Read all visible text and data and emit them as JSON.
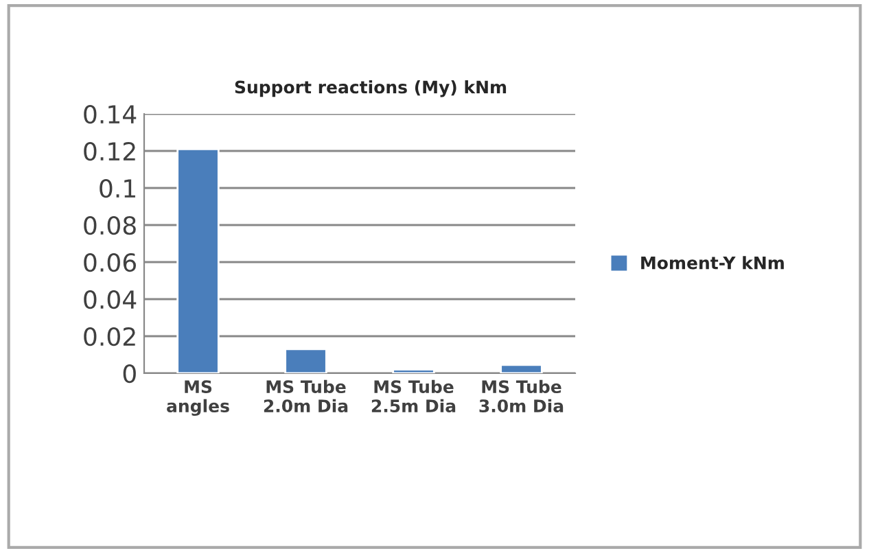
{
  "chart_data": {
    "type": "bar",
    "title": "Support reactions (My) kNm",
    "categories": [
      "MS\nangles",
      "MS Tube\n2.0m Dia",
      "MS Tube\n2.5m Dia",
      "MS Tube\n3.0m Dia"
    ],
    "series": [
      {
        "name": "Moment-Y kNm",
        "color": "#4a7ebb",
        "values": [
          0.121,
          0.013,
          0.002,
          0.0045
        ]
      }
    ],
    "ylim": [
      0,
      0.14
    ],
    "yticks": [
      0,
      0.02,
      0.04,
      0.06,
      0.08,
      0.1,
      0.12,
      0.14
    ],
    "grid": "y",
    "legend": "right"
  }
}
